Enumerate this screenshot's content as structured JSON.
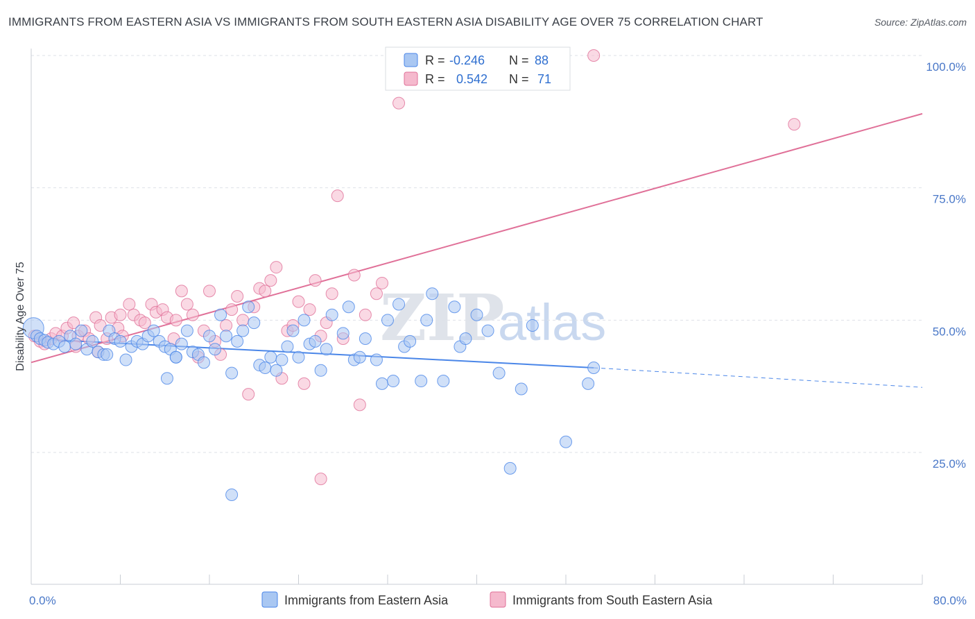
{
  "title": "IMMIGRANTS FROM EASTERN ASIA VS IMMIGRANTS FROM SOUTH EASTERN ASIA DISABILITY AGE OVER 75 CORRELATION CHART",
  "source": "Source: ZipAtlas.com",
  "watermark": {
    "zip": "ZIP",
    "atlas": "atlas"
  },
  "legend": {
    "rows": [
      {
        "r_label": "R =",
        "r_value": "-0.246",
        "n_label": "N =",
        "n_value": "88"
      },
      {
        "r_label": "R =",
        "r_value": "0.542",
        "n_label": "N =",
        "n_value": "71"
      }
    ]
  },
  "chart_data": {
    "type": "scatter",
    "ylabel": "Disability Age Over 75",
    "xlim": [
      0,
      80
    ],
    "ylim": [
      0,
      105
    ],
    "x_ticks": [
      0,
      8,
      16,
      24,
      32,
      40,
      48,
      56,
      64,
      72,
      80
    ],
    "x_tick_labels": {
      "0": "0.0%",
      "80": "80.0%"
    },
    "y_ticks": [
      25,
      50,
      75,
      100
    ],
    "y_tick_labels": [
      "25.0%",
      "50.0%",
      "75.0%",
      "100.0%"
    ],
    "grid": true,
    "colors": {
      "blue": "#4a86e8",
      "blue_fill": "#a9c7f2",
      "pink": "#e07098",
      "pink_fill": "#f5b9cd"
    },
    "series": [
      {
        "name": "Immigrants from Eastern Asia",
        "color": "#4a86e8",
        "trend": {
          "x0": 0,
          "y0": 46.5,
          "x1": 50.5,
          "y1": 41.0,
          "dash_to_x": 80,
          "dash_to_y": 37.3
        },
        "points": [
          [
            0.2,
            48.5
          ],
          [
            0.5,
            47.0
          ],
          [
            0.8,
            46.5
          ],
          [
            1.2,
            46.2
          ],
          [
            1.5,
            45.8
          ],
          [
            2.0,
            45.5
          ],
          [
            2.5,
            46.0
          ],
          [
            3.0,
            45.0
          ],
          [
            3.5,
            47.0
          ],
          [
            4.0,
            45.5
          ],
          [
            4.5,
            48.0
          ],
          [
            5.0,
            44.5
          ],
          [
            5.5,
            46.0
          ],
          [
            6.0,
            44.0
          ],
          [
            6.5,
            43.5
          ],
          [
            7.0,
            48.0
          ],
          [
            7.5,
            46.5
          ],
          [
            8.0,
            46.0
          ],
          [
            8.5,
            42.5
          ],
          [
            9.0,
            45.0
          ],
          [
            9.5,
            46.0
          ],
          [
            10.0,
            45.5
          ],
          [
            10.5,
            47.0
          ],
          [
            11.0,
            48.0
          ],
          [
            11.5,
            46.0
          ],
          [
            12.0,
            45.0
          ],
          [
            12.5,
            44.5
          ],
          [
            13.0,
            43.0
          ],
          [
            13.5,
            45.5
          ],
          [
            14.0,
            48.0
          ],
          [
            14.5,
            44.0
          ],
          [
            15.0,
            43.5
          ],
          [
            15.5,
            42.0
          ],
          [
            16.0,
            47.0
          ],
          [
            16.5,
            44.5
          ],
          [
            17.0,
            51.0
          ],
          [
            17.5,
            47.0
          ],
          [
            18.0,
            40.0
          ],
          [
            18.5,
            46.0
          ],
          [
            19.0,
            48.0
          ],
          [
            19.5,
            52.5
          ],
          [
            20.0,
            49.5
          ],
          [
            20.5,
            41.5
          ],
          [
            21.0,
            41.0
          ],
          [
            21.5,
            43.0
          ],
          [
            22.0,
            40.5
          ],
          [
            22.5,
            42.5
          ],
          [
            23.0,
            45.0
          ],
          [
            23.5,
            48.0
          ],
          [
            24.0,
            43.0
          ],
          [
            24.5,
            50.0
          ],
          [
            25.0,
            45.5
          ],
          [
            25.5,
            46.0
          ],
          [
            26.0,
            40.5
          ],
          [
            26.5,
            44.5
          ],
          [
            27.0,
            51.0
          ],
          [
            28.0,
            47.5
          ],
          [
            28.5,
            52.5
          ],
          [
            29.0,
            42.5
          ],
          [
            29.5,
            43.0
          ],
          [
            30.0,
            46.5
          ],
          [
            31.0,
            42.5
          ],
          [
            31.5,
            38.0
          ],
          [
            32.0,
            50.0
          ],
          [
            32.5,
            38.5
          ],
          [
            33.0,
            53.0
          ],
          [
            33.5,
            45.0
          ],
          [
            34.0,
            46.0
          ],
          [
            35.0,
            38.5
          ],
          [
            35.5,
            50.0
          ],
          [
            36.0,
            55.0
          ],
          [
            37.0,
            38.5
          ],
          [
            38.0,
            52.5
          ],
          [
            38.5,
            45.0
          ],
          [
            39.0,
            46.5
          ],
          [
            40.0,
            51.0
          ],
          [
            41.0,
            48.0
          ],
          [
            42.0,
            40.0
          ],
          [
            43.0,
            22.0
          ],
          [
            44.0,
            37.0
          ],
          [
            45.0,
            49.0
          ],
          [
            48.0,
            27.0
          ],
          [
            50.0,
            38.0
          ],
          [
            50.5,
            41.0
          ],
          [
            13.0,
            43.0
          ],
          [
            6.8,
            43.5
          ],
          [
            12.2,
            39.0
          ],
          [
            18.0,
            17.0
          ]
        ]
      },
      {
        "name": "Immigrants from South Eastern Asia",
        "color": "#e07098",
        "trend": {
          "x0": 0,
          "y0": 42.0,
          "x1": 80,
          "y1": 89.0
        },
        "points": [
          [
            0.3,
            47.0
          ],
          [
            0.8,
            46.0
          ],
          [
            1.2,
            45.5
          ],
          [
            1.8,
            46.5
          ],
          [
            2.2,
            47.5
          ],
          [
            2.8,
            47.0
          ],
          [
            3.2,
            48.5
          ],
          [
            3.8,
            49.5
          ],
          [
            4.2,
            47.0
          ],
          [
            4.8,
            48.0
          ],
          [
            5.2,
            46.5
          ],
          [
            5.8,
            50.5
          ],
          [
            6.2,
            49.0
          ],
          [
            6.8,
            46.5
          ],
          [
            7.2,
            50.5
          ],
          [
            7.8,
            48.5
          ],
          [
            8.2,
            47.0
          ],
          [
            8.8,
            53.0
          ],
          [
            9.2,
            51.0
          ],
          [
            9.8,
            50.0
          ],
          [
            10.2,
            49.5
          ],
          [
            10.8,
            53.0
          ],
          [
            11.2,
            51.5
          ],
          [
            11.8,
            52.0
          ],
          [
            12.2,
            50.5
          ],
          [
            12.8,
            46.5
          ],
          [
            13.5,
            55.5
          ],
          [
            14.0,
            53.0
          ],
          [
            14.5,
            51.0
          ],
          [
            15.0,
            43.0
          ],
          [
            15.5,
            48.0
          ],
          [
            16.0,
            55.5
          ],
          [
            16.5,
            46.0
          ],
          [
            17.0,
            43.5
          ],
          [
            18.0,
            52.0
          ],
          [
            18.5,
            54.5
          ],
          [
            19.0,
            50.0
          ],
          [
            19.5,
            36.0
          ],
          [
            20.0,
            52.5
          ],
          [
            20.5,
            56.0
          ],
          [
            21.0,
            55.5
          ],
          [
            21.5,
            57.5
          ],
          [
            22.0,
            60.0
          ],
          [
            22.5,
            39.0
          ],
          [
            23.0,
            48.0
          ],
          [
            23.5,
            49.0
          ],
          [
            24.0,
            53.5
          ],
          [
            24.5,
            38.0
          ],
          [
            25.0,
            52.0
          ],
          [
            25.5,
            57.5
          ],
          [
            26.0,
            47.0
          ],
          [
            26.5,
            49.5
          ],
          [
            27.0,
            55.0
          ],
          [
            27.5,
            73.5
          ],
          [
            28.0,
            46.5
          ],
          [
            29.0,
            58.5
          ],
          [
            29.5,
            34.0
          ],
          [
            30.0,
            51.0
          ],
          [
            31.0,
            55.0
          ],
          [
            31.5,
            57.0
          ],
          [
            32.5,
            100.0
          ],
          [
            33.0,
            91.0
          ],
          [
            35.0,
            100.0
          ],
          [
            50.5,
            100.0
          ],
          [
            68.5,
            87.0
          ],
          [
            26.0,
            20.0
          ],
          [
            17.5,
            49.0
          ],
          [
            13.0,
            50.0
          ],
          [
            8.0,
            51.0
          ],
          [
            6.0,
            44.0
          ],
          [
            4.0,
            45.0
          ]
        ]
      }
    ]
  },
  "bottom_legend": [
    {
      "label": "Immigrants from Eastern Asia"
    },
    {
      "label": "Immigrants from South Eastern Asia"
    }
  ]
}
